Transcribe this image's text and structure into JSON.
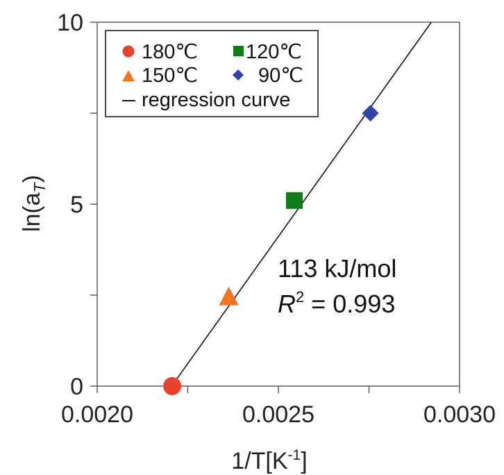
{
  "chart_data": {
    "type": "scatter",
    "title": "",
    "xlabel": "1/T[K",
    "xlabel_sup": "-1",
    "xlabel_end": "]",
    "ylabel": "ln(a",
    "ylabel_sub": "T",
    "ylabel_end": ")",
    "xlim": [
      0.002,
      0.003
    ],
    "ylim": [
      0,
      10
    ],
    "x_ticks": [
      "0.0020",
      "0.0025",
      "0.0030"
    ],
    "y_ticks": [
      "0",
      "5",
      "10"
    ],
    "grid": false,
    "legend_position": "top-left",
    "series": [
      {
        "name": "180℃",
        "marker": "circle",
        "color": "#e8412c",
        "points": [
          [
            0.002207,
            0.0
          ]
        ]
      },
      {
        "name": "150℃",
        "marker": "triangle",
        "color": "#f47321",
        "points": [
          [
            0.002363,
            2.45
          ]
        ]
      },
      {
        "name": "120℃",
        "marker": "square",
        "color": "#0e7d17",
        "points": [
          [
            0.002544,
            5.1
          ]
        ]
      },
      {
        "name": "90℃",
        "marker": "diamond",
        "color": "#2f44a8",
        "points": [
          [
            0.002754,
            7.5
          ]
        ]
      }
    ],
    "regression": {
      "name": "regression curve",
      "color": "#111111",
      "from": [
        0.002207,
        0.02
      ],
      "to": [
        0.002922,
        10.0
      ]
    },
    "annotations": {
      "energy": "113 kJ/mol",
      "r2_symbol": "R",
      "r2_sup": "2",
      "r2_value": " = 0.993"
    }
  }
}
